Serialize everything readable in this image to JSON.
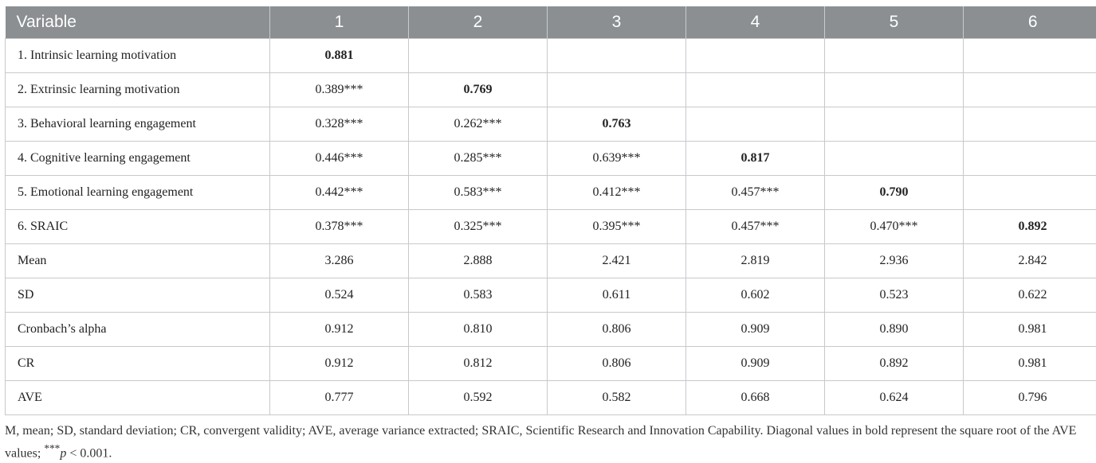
{
  "table": {
    "headers": [
      "Variable",
      "1",
      "2",
      "3",
      "4",
      "5",
      "6"
    ],
    "rows": [
      {
        "label": "1. Intrinsic learning motivation",
        "cells": [
          "0.881",
          "",
          "",
          "",
          "",
          ""
        ],
        "bold_index": 0
      },
      {
        "label": "2. Extrinsic learning motivation",
        "cells": [
          "0.389***",
          "0.769",
          "",
          "",
          "",
          ""
        ],
        "bold_index": 1
      },
      {
        "label": "3. Behavioral learning engagement",
        "cells": [
          "0.328***",
          "0.262***",
          "0.763",
          "",
          "",
          ""
        ],
        "bold_index": 2
      },
      {
        "label": "4. Cognitive learning engagement",
        "cells": [
          "0.446***",
          "0.285***",
          "0.639***",
          "0.817",
          "",
          ""
        ],
        "bold_index": 3
      },
      {
        "label": "5. Emotional learning engagement",
        "cells": [
          "0.442***",
          "0.583***",
          "0.412***",
          "0.457***",
          "0.790",
          ""
        ],
        "bold_index": 4
      },
      {
        "label": "6. SRAIC",
        "cells": [
          "0.378***",
          "0.325***",
          "0.395***",
          "0.457***",
          "0.470***",
          "0.892"
        ],
        "bold_index": 5
      },
      {
        "label": "Mean",
        "cells": [
          "3.286",
          "2.888",
          "2.421",
          "2.819",
          "2.936",
          "2.842"
        ],
        "bold_index": -1
      },
      {
        "label": "SD",
        "cells": [
          "0.524",
          "0.583",
          "0.611",
          "0.602",
          "0.523",
          "0.622"
        ],
        "bold_index": -1
      },
      {
        "label": "Cronbach’s alpha",
        "cells": [
          "0.912",
          "0.810",
          "0.806",
          "0.909",
          "0.890",
          "0.981"
        ],
        "bold_index": -1
      },
      {
        "label": "CR",
        "cells": [
          "0.912",
          "0.812",
          "0.806",
          "0.909",
          "0.892",
          "0.981"
        ],
        "bold_index": -1
      },
      {
        "label": "AVE",
        "cells": [
          "0.777",
          "0.592",
          "0.582",
          "0.668",
          "0.624",
          "0.796"
        ],
        "bold_index": -1
      }
    ]
  },
  "footnote": {
    "text": "M, mean; SD, standard deviation; CR, convergent validity; AVE, average variance extracted; SRAIC, Scientific Research and Innovation Capability. Diagonal values in bold represent the square root of the AVE values; ",
    "stars": "***",
    "p_symbol": "p",
    "p_rest": " < 0.001."
  },
  "colors": {
    "header_bg": "#8b8f92",
    "header_text": "#ffffff",
    "border": "#c7c9cb"
  }
}
